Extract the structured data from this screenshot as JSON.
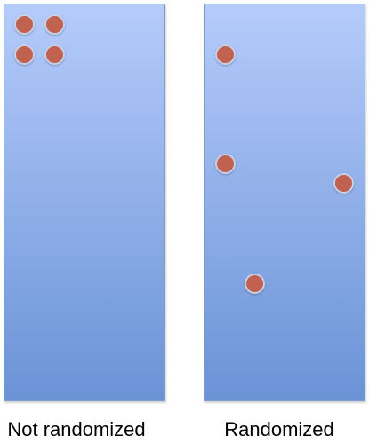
{
  "colors": {
    "panel_top": "#b5cbfb",
    "panel_bottom": "#6a93d6",
    "dot_fill": "#c1614f"
  },
  "left_panel": {
    "caption": "Not randomized"
  },
  "right_panel": {
    "caption": "Randomized"
  }
}
